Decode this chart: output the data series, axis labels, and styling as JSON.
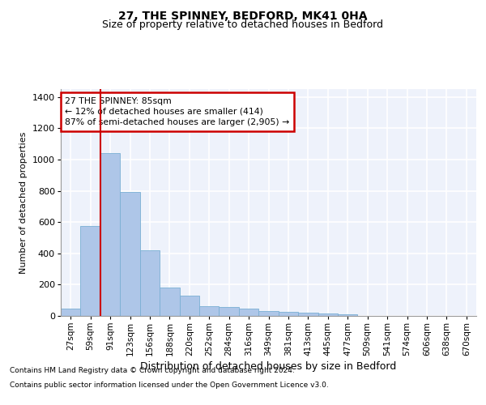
{
  "title": "27, THE SPINNEY, BEDFORD, MK41 0HA",
  "subtitle": "Size of property relative to detached houses in Bedford",
  "xlabel": "Distribution of detached houses by size in Bedford",
  "ylabel": "Number of detached properties",
  "categories": [
    "27sqm",
    "59sqm",
    "91sqm",
    "123sqm",
    "156sqm",
    "188sqm",
    "220sqm",
    "252sqm",
    "284sqm",
    "316sqm",
    "349sqm",
    "381sqm",
    "413sqm",
    "445sqm",
    "477sqm",
    "509sqm",
    "541sqm",
    "574sqm",
    "606sqm",
    "638sqm",
    "670sqm"
  ],
  "values": [
    45,
    575,
    1040,
    790,
    420,
    180,
    130,
    60,
    55,
    45,
    30,
    28,
    22,
    18,
    12,
    0,
    0,
    0,
    0,
    0,
    0
  ],
  "bar_color": "#aec6e8",
  "bar_edge_color": "#7aafd4",
  "vline_x_index": 2,
  "vline_color": "#cc0000",
  "annotation_text": "27 THE SPINNEY: 85sqm\n← 12% of detached houses are smaller (414)\n87% of semi-detached houses are larger (2,905) →",
  "annotation_box_color": "#cc0000",
  "ylim": [
    0,
    1450
  ],
  "yticks": [
    0,
    200,
    400,
    600,
    800,
    1000,
    1200,
    1400
  ],
  "background_color": "#eef2fb",
  "grid_color": "#ffffff",
  "footer_line1": "Contains HM Land Registry data © Crown copyright and database right 2024.",
  "footer_line2": "Contains public sector information licensed under the Open Government Licence v3.0.",
  "title_fontsize": 10,
  "subtitle_fontsize": 9,
  "ylabel_fontsize": 8,
  "xlabel_fontsize": 9,
  "tick_fontsize": 7.5,
  "ytick_fontsize": 8,
  "footer_fontsize": 6.5
}
